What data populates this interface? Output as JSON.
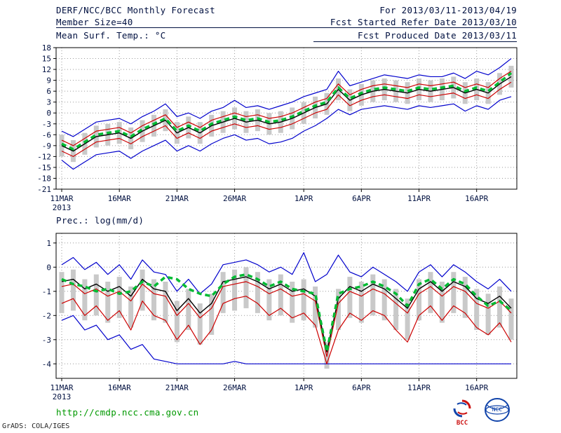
{
  "header": {
    "title": "DERF/NCC/BCC Monthly Forecast",
    "member_size": "Member Size=40",
    "temp_label": "Mean Surf. Temp.: °C",
    "for_range": "For 2013/03/11-2013/04/19",
    "fcst_started": "Fcst Started Refer Date 2013/03/10",
    "fcst_produced": "Fcst Produced Date 2013/03/11"
  },
  "panels": {
    "precip_label": "Prec.: log(mm/d)"
  },
  "footer": {
    "url": "http://cmdp.ncc.cma.gov.cn",
    "credit": "GrADS: COLA/IGES",
    "bcc_label": "BCC",
    "ncc_label": "NCC"
  },
  "colors": {
    "label": "#001040",
    "frame": "#000000",
    "grid": "#9a9a9a",
    "bar": "#c9c9c9",
    "ensemble_max_min": "#0000cc",
    "spread_band": "#cc0000",
    "ensemble_mean": "#000000",
    "median_dash": "#00bb33",
    "url_green": "#009900",
    "bcc_red": "#cc1111",
    "logo_blue": "#1144aa"
  },
  "chart_data": [
    {
      "type": "line",
      "title": "Mean Surf. Temp.: °C",
      "xlabel": "",
      "ylabel": "",
      "x_start_date": "11MAR2013",
      "x_end_date": "19APR2013",
      "ylim": [
        -21,
        18
      ],
      "yticks": [
        18,
        15,
        12,
        9,
        6,
        3,
        0,
        -3,
        -6,
        -9,
        -12,
        -15,
        -18,
        -21
      ],
      "grid": true,
      "x_ticks": [
        {
          "label": "11MAR",
          "sub": "2013",
          "day": 0
        },
        {
          "label": "16MAR",
          "day": 5
        },
        {
          "label": "21MAR",
          "day": 10
        },
        {
          "label": "26MAR",
          "day": 15
        },
        {
          "label": "1APR",
          "day": 21
        },
        {
          "label": "6APR",
          "day": 26
        },
        {
          "label": "11APR",
          "day": 31
        },
        {
          "label": "16APR",
          "day": 36
        }
      ],
      "spread_bars": {
        "name": "ensemble-spread-bar",
        "color": "#c9c9c9",
        "high": [
          -6,
          -7.5,
          -5.5,
          -3.5,
          -3,
          -2.5,
          -4,
          -2,
          -0.5,
          1,
          -2.5,
          -1,
          -2.5,
          -0.5,
          0.5,
          1.5,
          0.5,
          1,
          0,
          0.5,
          1.5,
          3,
          4.5,
          5.5,
          9.5,
          6.5,
          8,
          9,
          9.5,
          9,
          8.5,
          9.5,
          9,
          9.5,
          10,
          8.5,
          9.5,
          8.5,
          11,
          13
        ],
        "low": [
          -12,
          -13.5,
          -11.5,
          -9.5,
          -9,
          -8.5,
          -10,
          -8,
          -6.5,
          -5,
          -8.5,
          -7,
          -8.5,
          -6.5,
          -5.5,
          -4.5,
          -5.5,
          -5,
          -6,
          -5.5,
          -4.5,
          -3,
          -1.5,
          -0.5,
          3.5,
          0.5,
          2,
          3,
          3.5,
          3,
          2.5,
          3.5,
          3,
          3.5,
          4,
          2.5,
          3.5,
          2.5,
          5,
          7
        ]
      },
      "series": [
        {
          "name": "ensemble-max",
          "color": "#0000cc",
          "width": 1.2,
          "values": [
            -5,
            -6.5,
            -4.5,
            -2.5,
            -2,
            -1.5,
            -3,
            -1,
            0.5,
            2.5,
            -1,
            0,
            -1.5,
            0.5,
            1.5,
            3.5,
            1.5,
            2,
            1,
            2,
            3,
            4.5,
            5.5,
            6.5,
            11.5,
            7.5,
            8.5,
            9.5,
            10.5,
            10,
            9.5,
            10.5,
            10,
            10,
            11,
            9.5,
            11.5,
            10.5,
            12.5,
            15
          ]
        },
        {
          "name": "ensemble-min",
          "color": "#0000cc",
          "width": 1.2,
          "values": [
            -13,
            -15.5,
            -13.5,
            -11.5,
            -11,
            -10.5,
            -12.5,
            -10.5,
            -9,
            -7.5,
            -10.5,
            -9,
            -10.5,
            -8.5,
            -7,
            -6,
            -7.5,
            -7,
            -8.5,
            -8,
            -7,
            -5,
            -3.5,
            -1.5,
            1,
            -0.5,
            1,
            1.5,
            2,
            1.5,
            1,
            2,
            1.5,
            2,
            2.5,
            0.5,
            2,
            1,
            3.5,
            4.5
          ]
        },
        {
          "name": "spread-upper",
          "color": "#cc0000",
          "width": 1.2,
          "values": [
            -7.5,
            -9,
            -7,
            -5,
            -4.5,
            -4,
            -5.5,
            -3.5,
            -2,
            -0.5,
            -4,
            -2.5,
            -4,
            -2,
            -1,
            0,
            -1,
            -0.5,
            -1.5,
            -1,
            0,
            1.5,
            3,
            4,
            8,
            5,
            6.5,
            7.5,
            8,
            7.5,
            7,
            8,
            7.5,
            8,
            8.5,
            7,
            8,
            7,
            9.5,
            11.5
          ]
        },
        {
          "name": "spread-lower",
          "color": "#cc0000",
          "width": 1.2,
          "values": [
            -10.5,
            -12,
            -10,
            -8,
            -7.5,
            -7,
            -8.5,
            -6.5,
            -5,
            -3.5,
            -7,
            -5.5,
            -7,
            -5,
            -4,
            -3,
            -4,
            -3.5,
            -4.5,
            -4,
            -3,
            -1.5,
            0,
            1,
            5,
            2,
            3.5,
            4.5,
            5,
            4.5,
            4,
            5,
            4.5,
            5,
            5.5,
            4,
            5,
            4,
            6.5,
            8.5
          ]
        },
        {
          "name": "ensemble-mean",
          "color": "#000000",
          "width": 1.4,
          "values": [
            -9,
            -10.5,
            -8.5,
            -6.5,
            -6,
            -5.5,
            -7,
            -5,
            -3.5,
            -2,
            -5.5,
            -4,
            -5.5,
            -3.5,
            -2.5,
            -1.5,
            -2.5,
            -2,
            -3,
            -2.5,
            -1.5,
            0,
            1.5,
            2.5,
            6.5,
            3.5,
            5,
            6,
            6.5,
            6,
            5.5,
            6.5,
            6,
            6.5,
            7,
            5.5,
            6.5,
            5.5,
            8,
            10
          ],
          "is_mean": true
        },
        {
          "name": "ensemble-median-dashed",
          "color": "#00bb33",
          "width": 3.5,
          "dash": "7 5",
          "values": [
            -8.5,
            -10,
            -8,
            -6,
            -5.5,
            -5,
            -6.5,
            -4.5,
            -3,
            -1.5,
            -5,
            -3.5,
            -5,
            -3,
            -2,
            -1,
            -2,
            -1.5,
            -2.5,
            -2,
            -1,
            0.5,
            2,
            3,
            7,
            4,
            5.5,
            6.5,
            7,
            6.5,
            6,
            7,
            6.5,
            7,
            7.5,
            6,
            7,
            6,
            8.5,
            11
          ]
        }
      ]
    },
    {
      "type": "line",
      "title": "Prec.: log(mm/d)",
      "xlabel": "",
      "ylabel": "",
      "x_start_date": "11MAR2013",
      "x_end_date": "19APR2013",
      "ylim": [
        -4.6,
        1.4
      ],
      "yticks": [
        1,
        0,
        -1,
        -2,
        -3,
        -4
      ],
      "grid": true,
      "x_ticks": [
        {
          "label": "11MAR",
          "sub": "2013",
          "day": 0
        },
        {
          "label": "16MAR",
          "day": 5
        },
        {
          "label": "21MAR",
          "day": 10
        },
        {
          "label": "26MAR",
          "day": 15
        },
        {
          "label": "1APR",
          "day": 21
        },
        {
          "label": "6APR",
          "day": 26
        },
        {
          "label": "11APR",
          "day": 31
        },
        {
          "label": "16APR",
          "day": 36
        }
      ],
      "spread_bars": {
        "name": "ensemble-spread-bar",
        "color": "#c9c9c9",
        "high": [
          -0.2,
          -0.1,
          -0.5,
          -0.3,
          -0.6,
          -0.4,
          -0.8,
          -0.1,
          -0.5,
          -0.6,
          -1.4,
          -0.9,
          -1.5,
          -1.1,
          -0.2,
          -0.1,
          0,
          -0.2,
          -0.5,
          -0.3,
          -0.6,
          -0.5,
          -0.8,
          -3.1,
          -0.9,
          -0.4,
          -0.6,
          -0.3,
          -0.5,
          -0.9,
          -1.3,
          -0.5,
          -0.2,
          -0.6,
          -0.2,
          -0.4,
          -0.9,
          -1.1,
          -0.8,
          -1.3
        ],
        "low": [
          -1.9,
          -1.8,
          -2.2,
          -2,
          -2.3,
          -2.1,
          -2.5,
          -1.8,
          -2.2,
          -2.3,
          -3.1,
          -2.6,
          -3.2,
          -2.8,
          -1.9,
          -1.8,
          -1.7,
          -1.9,
          -2.2,
          -2,
          -2.3,
          -2.2,
          -2.5,
          -4.2,
          -2.6,
          -2.1,
          -2.3,
          -2,
          -2.2,
          -2.6,
          -3,
          -2.2,
          -1.9,
          -2.3,
          -1.9,
          -2.1,
          -2.6,
          -2.8,
          -2.5,
          -3
        ]
      },
      "series": [
        {
          "name": "ensemble-max",
          "color": "#0000cc",
          "width": 1.2,
          "values": [
            0.1,
            0.4,
            -0.1,
            0.2,
            -0.3,
            0.1,
            -0.5,
            0.3,
            -0.2,
            -0.3,
            -1,
            -0.5,
            -1.1,
            -0.7,
            0.1,
            0.2,
            0.3,
            0.1,
            -0.2,
            0,
            -0.3,
            0.6,
            -0.6,
            -0.3,
            0.5,
            -0.2,
            -0.4,
            0,
            -0.3,
            -0.6,
            -1,
            -0.2,
            0.1,
            -0.4,
            0.1,
            -0.2,
            -0.6,
            -0.9,
            -0.5,
            -1
          ]
        },
        {
          "name": "ensemble-min",
          "color": "#0000cc",
          "width": 1.2,
          "values": [
            -2.2,
            -2,
            -2.6,
            -2.4,
            -3,
            -2.8,
            -3.4,
            -3.2,
            -3.8,
            -3.9,
            -4,
            -4,
            -4,
            -4,
            -4,
            -3.9,
            -4,
            -4,
            -4,
            -4,
            -4,
            -4,
            -4,
            -4,
            -4,
            -4,
            -4,
            -4,
            -4,
            -4,
            -4,
            -4,
            -4,
            -4,
            -4,
            -4,
            -4,
            -4,
            -4,
            -4
          ]
        },
        {
          "name": "spread-upper",
          "color": "#cc0000",
          "width": 1.2,
          "values": [
            -0.8,
            -0.7,
            -1.1,
            -0.9,
            -1.2,
            -1,
            -1.4,
            -0.7,
            -1.1,
            -1.2,
            -2,
            -1.5,
            -2.1,
            -1.7,
            -0.8,
            -0.7,
            -0.6,
            -0.8,
            -1.1,
            -0.9,
            -1.2,
            -1.1,
            -1.4,
            -3.7,
            -1.5,
            -1,
            -1.2,
            -0.9,
            -1.1,
            -1.5,
            -1.9,
            -1.1,
            -0.8,
            -1.2,
            -0.8,
            -1,
            -1.5,
            -1.7,
            -1.4,
            -1.9
          ]
        },
        {
          "name": "spread-lower",
          "color": "#cc0000",
          "width": 1.2,
          "values": [
            -1.5,
            -1.3,
            -2,
            -1.6,
            -2.2,
            -1.8,
            -2.6,
            -1.4,
            -2,
            -2.2,
            -3,
            -2.4,
            -3.2,
            -2.6,
            -1.5,
            -1.3,
            -1.2,
            -1.5,
            -2,
            -1.7,
            -2.1,
            -1.9,
            -2.4,
            -4,
            -2.6,
            -1.9,
            -2.2,
            -1.8,
            -2,
            -2.6,
            -3.1,
            -2,
            -1.6,
            -2.2,
            -1.6,
            -1.9,
            -2.5,
            -2.8,
            -2.3,
            -3.1
          ]
        },
        {
          "name": "ensemble-mean",
          "color": "#000000",
          "width": 1.4,
          "values": [
            -0.6,
            -0.5,
            -0.9,
            -0.7,
            -1,
            -0.8,
            -1.2,
            -0.5,
            -0.9,
            -1,
            -1.8,
            -1.3,
            -1.9,
            -1.5,
            -0.6,
            -0.5,
            -0.4,
            -0.6,
            -0.9,
            -0.7,
            -1,
            -0.9,
            -1.2,
            -3.5,
            -1.3,
            -0.8,
            -1,
            -0.7,
            -0.9,
            -1.3,
            -1.7,
            -0.9,
            -0.6,
            -1,
            -0.6,
            -0.8,
            -1.3,
            -1.5,
            -1.2,
            -1.7
          ],
          "is_mean": true
        },
        {
          "name": "ensemble-median-dashed",
          "color": "#00bb33",
          "width": 3.5,
          "dash": "7 5",
          "values": [
            -0.5,
            -0.7,
            -0.8,
            -1,
            -0.9,
            -1.1,
            -1,
            -0.6,
            -0.8,
            -0.4,
            -0.5,
            -0.9,
            -1.1,
            -1.2,
            -0.7,
            -0.4,
            -0.3,
            -0.5,
            -0.8,
            -0.6,
            -0.9,
            -1,
            -1.1,
            -3.5,
            -1.1,
            -0.9,
            -0.8,
            -0.6,
            -0.8,
            -1.1,
            -1.6,
            -0.7,
            -0.5,
            -0.9,
            -0.5,
            -0.7,
            -1.2,
            -1.6,
            -1.4,
            -1.8
          ]
        }
      ]
    }
  ]
}
